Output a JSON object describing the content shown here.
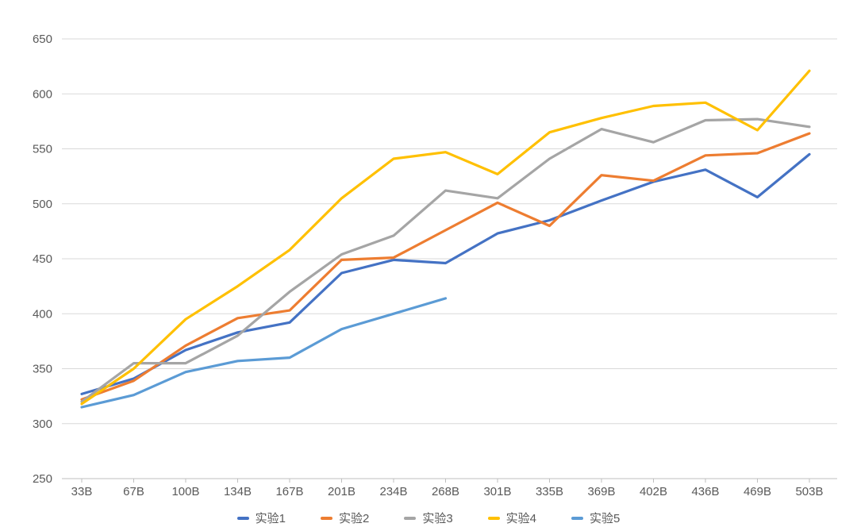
{
  "chart_data": {
    "type": "line",
    "title": "",
    "xlabel": "",
    "ylabel": "",
    "categories": [
      "33B",
      "67B",
      "100B",
      "134B",
      "167B",
      "201B",
      "234B",
      "268B",
      "301B",
      "335B",
      "369B",
      "402B",
      "436B",
      "469B",
      "503B"
    ],
    "series": [
      {
        "name": "实验1",
        "color": "#4472C4",
        "values": [
          327,
          341,
          367,
          383,
          392,
          437,
          449,
          446,
          473,
          485,
          503,
          520,
          531,
          506,
          545
        ]
      },
      {
        "name": "实验2",
        "color": "#ED7D31",
        "values": [
          322,
          339,
          371,
          396,
          403,
          449,
          451,
          476,
          501,
          480,
          526,
          521,
          544,
          546,
          564
        ]
      },
      {
        "name": "实验3",
        "color": "#A5A5A5",
        "values": [
          320,
          355,
          355,
          380,
          420,
          454,
          471,
          512,
          505,
          541,
          568,
          556,
          576,
          577,
          570
        ]
      },
      {
        "name": "实验4",
        "color": "#FFC000",
        "values": [
          318,
          350,
          395,
          425,
          458,
          505,
          541,
          547,
          527,
          565,
          578,
          589,
          592,
          567,
          621
        ]
      },
      {
        "name": "实验5",
        "color": "#5B9BD5",
        "values": [
          315,
          326,
          347,
          357,
          360,
          386,
          400,
          414
        ]
      }
    ],
    "ylim": [
      250,
      650
    ],
    "ytick_step": 50,
    "ytick_labels": [
      "250",
      "300",
      "350",
      "400",
      "450",
      "500",
      "550",
      "600",
      "650"
    ],
    "grid": "horizontal-only",
    "legend_position": "bottom-center",
    "colors": {
      "grid_line": "#D9D9D9",
      "axis_line": "#BFBFBF",
      "tick_mark": "#BFBFBF",
      "axis_label": "#595959",
      "background": "#FFFFFF"
    }
  }
}
